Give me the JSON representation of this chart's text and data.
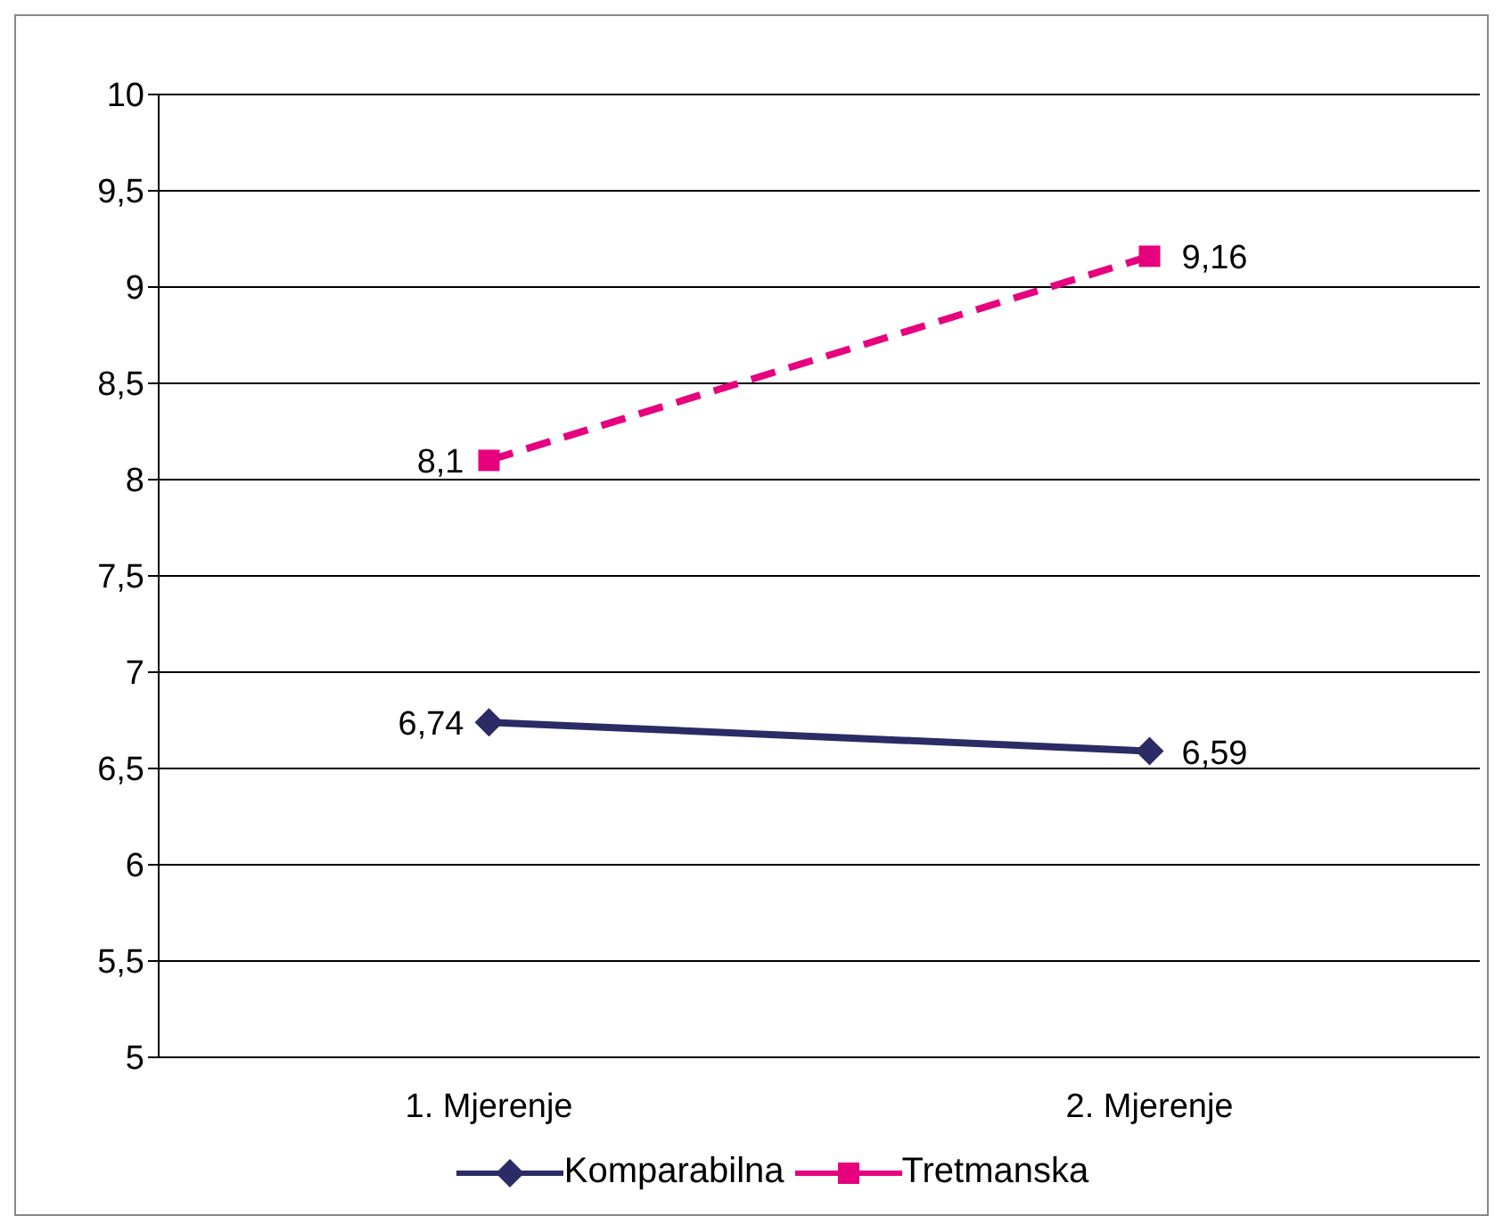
{
  "chart_data": {
    "type": "line",
    "categories": [
      "1. Mjerenje",
      "2. Mjerenje"
    ],
    "series": [
      {
        "name": "Komparabilna",
        "color": "#2b2b66",
        "values": [
          6.74,
          6.59
        ],
        "value_labels": [
          "6,74",
          "6,59"
        ],
        "marker": "diamond",
        "line_style": "solid"
      },
      {
        "name": "Tretmanska",
        "color": "#e6007e",
        "values": [
          8.1,
          9.16
        ],
        "value_labels": [
          "8,1",
          "9,16"
        ],
        "marker": "square",
        "line_style": "dashed"
      }
    ],
    "ylim": [
      5,
      10
    ],
    "yticks": [
      5,
      {
        "value": 5.5,
        "label": "5,5"
      },
      6,
      {
        "value": 6.5,
        "label": "6,5"
      },
      7,
      {
        "value": 7.5,
        "label": "7,5"
      },
      8,
      {
        "value": 8.5,
        "label": "8,5"
      },
      9,
      {
        "value": 9.5,
        "label": "9,5"
      },
      10
    ],
    "grid": "y",
    "legend": "bottom"
  }
}
